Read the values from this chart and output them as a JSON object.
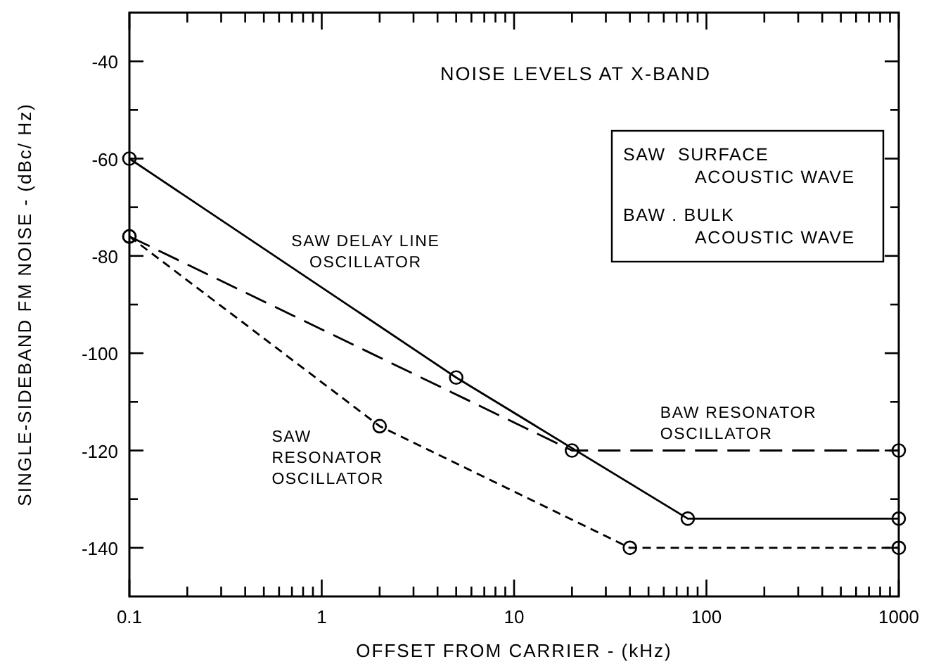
{
  "chart_data": {
    "type": "line",
    "title": "NOISE LEVELS AT X-BAND",
    "xlabel": "OFFSET FROM CARRIER - (kHz)",
    "ylabel": "SINGLE-SIDEBAND FM NOISE - (dBc/ Hz)",
    "log": "x",
    "xlim": [
      0.1,
      1000
    ],
    "ylim": [
      -150,
      -30
    ],
    "xticks": [
      0.1,
      {
        "value": 0.2,
        "label": null
      },
      {
        "value": 0.3,
        "label": null
      },
      {
        "value": 0.4,
        "label": null
      },
      {
        "value": 0.5,
        "label": null
      },
      {
        "value": 0.6,
        "label": null
      },
      {
        "value": 0.7,
        "label": null
      },
      {
        "value": 0.8,
        "label": null
      },
      {
        "value": 0.9,
        "label": null
      },
      1,
      {
        "value": 2,
        "label": null
      },
      {
        "value": 3,
        "label": null
      },
      {
        "value": 4,
        "label": null
      },
      {
        "value": 5,
        "label": null
      },
      {
        "value": 6,
        "label": null
      },
      {
        "value": 7,
        "label": null
      },
      {
        "value": 8,
        "label": null
      },
      {
        "value": 9,
        "label": null
      },
      10,
      {
        "value": 20,
        "label": null
      },
      {
        "value": 30,
        "label": null
      },
      {
        "value": 40,
        "label": null
      },
      {
        "value": 50,
        "label": null
      },
      {
        "value": 60,
        "label": null
      },
      {
        "value": 70,
        "label": null
      },
      {
        "value": 80,
        "label": null
      },
      {
        "value": 90,
        "label": null
      },
      100,
      {
        "value": 200,
        "label": null
      },
      {
        "value": 300,
        "label": null
      },
      {
        "value": 400,
        "label": null
      },
      {
        "value": 500,
        "label": null
      },
      {
        "value": 600,
        "label": null
      },
      {
        "value": 700,
        "label": null
      },
      {
        "value": 800,
        "label": null
      },
      {
        "value": 900,
        "label": null
      },
      1000
    ],
    "yticks": [
      -40,
      {
        "value": -50,
        "label": null
      },
      -60,
      {
        "value": -70,
        "label": null
      },
      -80,
      {
        "value": -90,
        "label": null
      },
      -100,
      {
        "value": -110,
        "label": null
      },
      -120,
      {
        "value": -130,
        "label": null
      },
      -140
    ],
    "grid": false,
    "marker": "circle",
    "annotations": [
      "SAW  SURFACE\nACOUSTIC WAVE",
      "BAW . BULK\nACOUSTIC WAVE"
    ],
    "series": [
      {
        "name": "SAW DELAY LINE\nOSCILLATOR",
        "color": "#000000",
        "line_style": "solid",
        "x": [
          0.1,
          5,
          80,
          1000
        ],
        "values": [
          -60,
          -105,
          -134,
          -134
        ]
      },
      {
        "name": "BAW RESONATOR\nOSCILLATOR",
        "color": "#000000",
        "line_style": "dashed",
        "x": [
          0.1,
          20,
          1000
        ],
        "values": [
          -76,
          -120,
          -120
        ]
      },
      {
        "name": "SAW\nRESONATOR\nOSCILLATOR",
        "color": "#000000",
        "line_style": "dotted",
        "x": [
          0.1,
          2,
          40,
          1000
        ],
        "values": [
          -76,
          -115,
          -140,
          -140
        ]
      }
    ]
  }
}
